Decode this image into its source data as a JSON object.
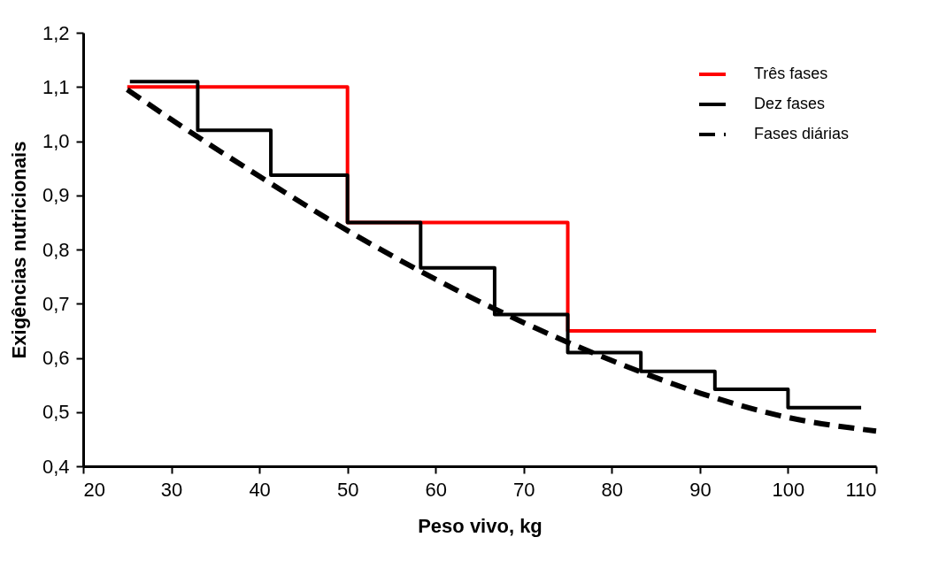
{
  "chart_data": {
    "type": "step",
    "xlabel": "Peso vivo, kg",
    "ylabel": "Exigências nutricionais",
    "xlim": [
      20,
      110
    ],
    "xticks": [
      20,
      30,
      40,
      50,
      60,
      70,
      80,
      90,
      100,
      110
    ],
    "ylim": [
      0.4,
      1.2
    ],
    "yticks": [
      {
        "value": 0.4,
        "label": "0,4"
      },
      {
        "value": 0.5,
        "label": "0,5"
      },
      {
        "value": 0.6,
        "label": "0,6"
      },
      {
        "value": 0.7,
        "label": "0,7"
      },
      {
        "value": 0.8,
        "label": "0,8"
      },
      {
        "value": 0.9,
        "label": "0,9"
      },
      {
        "value": 1.0,
        "label": "1,0"
      },
      {
        "value": 1.1,
        "label": "1,1"
      },
      {
        "value": 1.2,
        "label": "1,2"
      }
    ],
    "grid": false,
    "legend": "top right",
    "series": [
      {
        "name": "Três fases",
        "type": "step",
        "color": "#ff0000",
        "line_style": "solid",
        "x": [
          25,
          50,
          75,
          110
        ],
        "values": [
          1.1,
          0.85,
          0.65,
          0.65
        ]
      },
      {
        "name": "Dez fases",
        "type": "step",
        "color": "#000000",
        "line_style": "solid",
        "x": [
          25.3,
          33,
          41.3,
          50,
          58.3,
          66.7,
          75,
          83.3,
          91.7,
          100,
          108.3
        ],
        "values": [
          1.11,
          1.02,
          0.937,
          0.85,
          0.766,
          0.68,
          0.61,
          0.575,
          0.542,
          0.508,
          0.508
        ]
      },
      {
        "name": "Fases diárias",
        "type": "line",
        "color": "#000000",
        "line_style": "dashed",
        "x": [
          25,
          30,
          40,
          50,
          60,
          70,
          80,
          90,
          100,
          110
        ],
        "values": [
          1.095,
          1.04,
          0.935,
          0.835,
          0.745,
          0.665,
          0.595,
          0.535,
          0.49,
          0.465
        ]
      }
    ]
  }
}
